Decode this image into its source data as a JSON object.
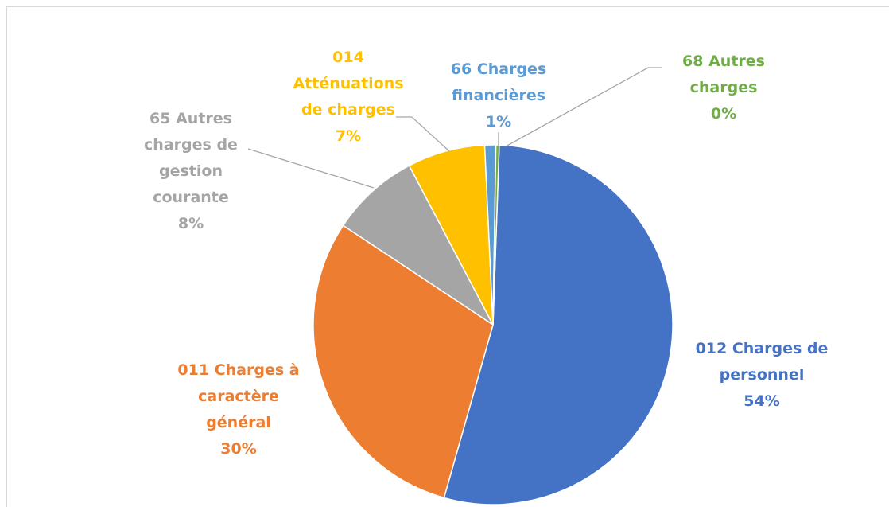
{
  "chart_data": {
    "type": "pie",
    "categories": [
      "012 Charges de personnel",
      "011 Charges à caractère général",
      "65 Autres charges de gestion courante",
      "014 Atténuations de charges",
      "66 Charges financières",
      "68 Autres charges"
    ],
    "values": [
      54,
      30,
      8,
      7,
      1,
      0.3
    ],
    "value_labels": [
      "54%",
      "30%",
      "8%",
      "7%",
      "1%",
      "0%"
    ],
    "colors": [
      "#4472c4",
      "#ed7d31",
      "#a5a5a5",
      "#ffc000",
      "#5b9bd5",
      "#70ad47"
    ]
  }
}
